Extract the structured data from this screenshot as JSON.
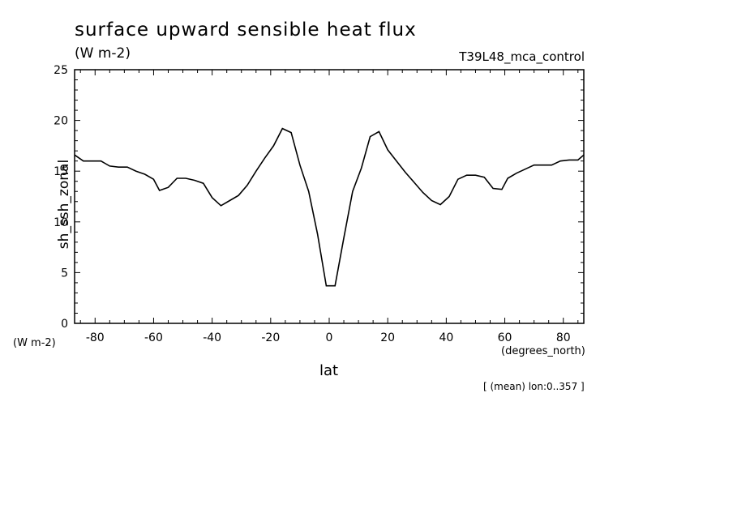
{
  "chart_data": {
    "type": "line",
    "title": "surface upward sensible heat flux",
    "units": "(W m-2)",
    "run_label": "T39L48_mca_control",
    "ylabel": "sh_ssh_zonal",
    "yunits": "(W m-2)",
    "xlabel": "lat",
    "xunits": "(degrees_north)",
    "note": "[ (mean) lon:0..357 ]",
    "xlim": [
      -87,
      87
    ],
    "ylim": [
      0,
      25
    ],
    "xticks": [
      "-80",
      "-60",
      "-40",
      "-20",
      "0",
      "20",
      "40",
      "60",
      "80"
    ],
    "yticks": [
      "0",
      "5",
      "10",
      "15",
      "20",
      "25"
    ],
    "grid": false,
    "series": [
      {
        "x": [
          -87,
          -84,
          -81,
          -78,
          -75,
          -72,
          -69,
          -66,
          -63,
          -60,
          -58,
          -55,
          -52,
          -49,
          -46,
          -43,
          -40,
          -37,
          -34,
          -31,
          -28,
          -25,
          -22,
          -19,
          -16,
          -13,
          -10,
          -7,
          -4,
          -1,
          2,
          5,
          8,
          11,
          14,
          17,
          20,
          23,
          26,
          29,
          32,
          35,
          38,
          41,
          44,
          47,
          50,
          53,
          56,
          59,
          61,
          64,
          67,
          70,
          73,
          76,
          79,
          82,
          85,
          87
        ],
        "y": [
          16.6,
          16.0,
          16.0,
          16.0,
          15.5,
          15.4,
          15.4,
          15.0,
          14.7,
          14.2,
          13.1,
          13.4,
          14.3,
          14.3,
          14.1,
          13.8,
          12.4,
          11.6,
          12.1,
          12.6,
          13.6,
          15.0,
          16.3,
          17.5,
          19.2,
          18.8,
          15.6,
          13.0,
          8.8,
          3.7,
          3.7,
          8.4,
          13.0,
          15.3,
          18.4,
          18.9,
          17.1,
          16.0,
          14.9,
          13.9,
          12.9,
          12.1,
          11.7,
          12.5,
          14.2,
          14.6,
          14.6,
          14.4,
          13.3,
          13.2,
          14.3,
          14.8,
          15.2,
          15.6,
          15.6,
          15.6,
          16.0,
          16.1,
          16.1,
          16.6
        ]
      }
    ]
  }
}
